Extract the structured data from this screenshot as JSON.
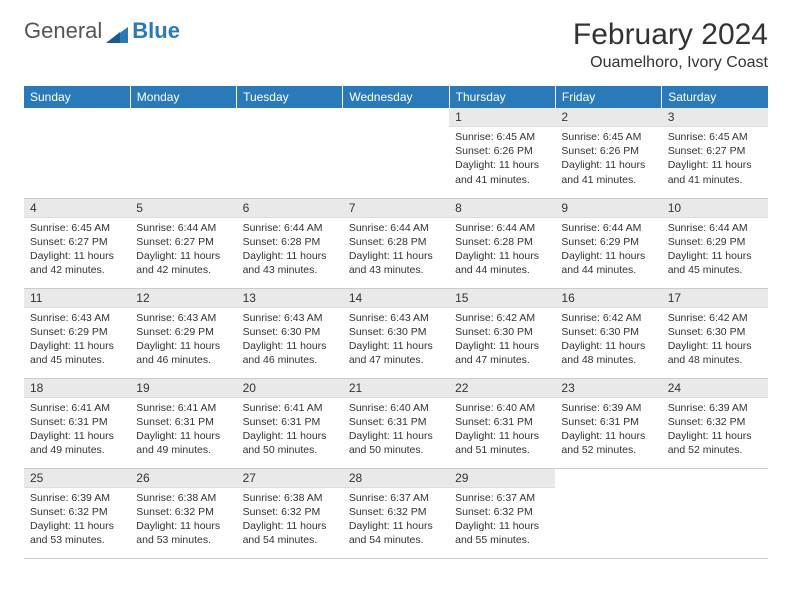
{
  "logo": {
    "text1": "General",
    "text2": "Blue"
  },
  "title": "February 2024",
  "location": "Ouamelhoro, Ivory Coast",
  "colors": {
    "header_bg": "#2a7ab9",
    "header_text": "#ffffff",
    "daynum_bg": "#e9e9e9",
    "text": "#333333",
    "border": "#cccccc"
  },
  "weekdays": [
    "Sunday",
    "Monday",
    "Tuesday",
    "Wednesday",
    "Thursday",
    "Friday",
    "Saturday"
  ],
  "weeks": [
    [
      null,
      null,
      null,
      null,
      {
        "n": "1",
        "sr": "6:45 AM",
        "ss": "6:26 PM",
        "dl": "11 hours and 41 minutes."
      },
      {
        "n": "2",
        "sr": "6:45 AM",
        "ss": "6:26 PM",
        "dl": "11 hours and 41 minutes."
      },
      {
        "n": "3",
        "sr": "6:45 AM",
        "ss": "6:27 PM",
        "dl": "11 hours and 41 minutes."
      }
    ],
    [
      {
        "n": "4",
        "sr": "6:45 AM",
        "ss": "6:27 PM",
        "dl": "11 hours and 42 minutes."
      },
      {
        "n": "5",
        "sr": "6:44 AM",
        "ss": "6:27 PM",
        "dl": "11 hours and 42 minutes."
      },
      {
        "n": "6",
        "sr": "6:44 AM",
        "ss": "6:28 PM",
        "dl": "11 hours and 43 minutes."
      },
      {
        "n": "7",
        "sr": "6:44 AM",
        "ss": "6:28 PM",
        "dl": "11 hours and 43 minutes."
      },
      {
        "n": "8",
        "sr": "6:44 AM",
        "ss": "6:28 PM",
        "dl": "11 hours and 44 minutes."
      },
      {
        "n": "9",
        "sr": "6:44 AM",
        "ss": "6:29 PM",
        "dl": "11 hours and 44 minutes."
      },
      {
        "n": "10",
        "sr": "6:44 AM",
        "ss": "6:29 PM",
        "dl": "11 hours and 45 minutes."
      }
    ],
    [
      {
        "n": "11",
        "sr": "6:43 AM",
        "ss": "6:29 PM",
        "dl": "11 hours and 45 minutes."
      },
      {
        "n": "12",
        "sr": "6:43 AM",
        "ss": "6:29 PM",
        "dl": "11 hours and 46 minutes."
      },
      {
        "n": "13",
        "sr": "6:43 AM",
        "ss": "6:30 PM",
        "dl": "11 hours and 46 minutes."
      },
      {
        "n": "14",
        "sr": "6:43 AM",
        "ss": "6:30 PM",
        "dl": "11 hours and 47 minutes."
      },
      {
        "n": "15",
        "sr": "6:42 AM",
        "ss": "6:30 PM",
        "dl": "11 hours and 47 minutes."
      },
      {
        "n": "16",
        "sr": "6:42 AM",
        "ss": "6:30 PM",
        "dl": "11 hours and 48 minutes."
      },
      {
        "n": "17",
        "sr": "6:42 AM",
        "ss": "6:30 PM",
        "dl": "11 hours and 48 minutes."
      }
    ],
    [
      {
        "n": "18",
        "sr": "6:41 AM",
        "ss": "6:31 PM",
        "dl": "11 hours and 49 minutes."
      },
      {
        "n": "19",
        "sr": "6:41 AM",
        "ss": "6:31 PM",
        "dl": "11 hours and 49 minutes."
      },
      {
        "n": "20",
        "sr": "6:41 AM",
        "ss": "6:31 PM",
        "dl": "11 hours and 50 minutes."
      },
      {
        "n": "21",
        "sr": "6:40 AM",
        "ss": "6:31 PM",
        "dl": "11 hours and 50 minutes."
      },
      {
        "n": "22",
        "sr": "6:40 AM",
        "ss": "6:31 PM",
        "dl": "11 hours and 51 minutes."
      },
      {
        "n": "23",
        "sr": "6:39 AM",
        "ss": "6:31 PM",
        "dl": "11 hours and 52 minutes."
      },
      {
        "n": "24",
        "sr": "6:39 AM",
        "ss": "6:32 PM",
        "dl": "11 hours and 52 minutes."
      }
    ],
    [
      {
        "n": "25",
        "sr": "6:39 AM",
        "ss": "6:32 PM",
        "dl": "11 hours and 53 minutes."
      },
      {
        "n": "26",
        "sr": "6:38 AM",
        "ss": "6:32 PM",
        "dl": "11 hours and 53 minutes."
      },
      {
        "n": "27",
        "sr": "6:38 AM",
        "ss": "6:32 PM",
        "dl": "11 hours and 54 minutes."
      },
      {
        "n": "28",
        "sr": "6:37 AM",
        "ss": "6:32 PM",
        "dl": "11 hours and 54 minutes."
      },
      {
        "n": "29",
        "sr": "6:37 AM",
        "ss": "6:32 PM",
        "dl": "11 hours and 55 minutes."
      },
      null,
      null
    ]
  ],
  "labels": {
    "sunrise": "Sunrise:",
    "sunset": "Sunset:",
    "daylight": "Daylight:"
  }
}
